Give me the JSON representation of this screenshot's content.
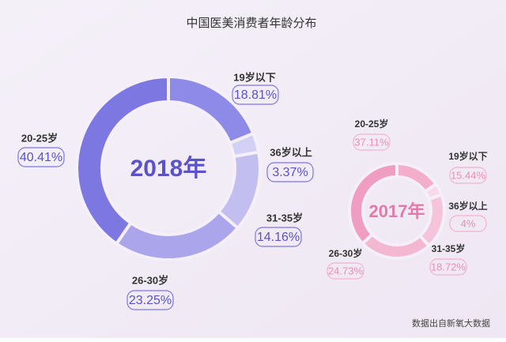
{
  "title": "中国医美消费者年龄分布",
  "source": "数据出自新氧大数据",
  "chart_data": [
    {
      "type": "pie",
      "center_label": "2018年",
      "categories": [
        "19岁以下",
        "36岁以上",
        "31-35岁",
        "26-30岁",
        "20-25岁"
      ],
      "values": [
        18.81,
        3.37,
        14.16,
        23.25,
        40.41
      ],
      "value_labels": [
        "18.81%",
        "3.37%",
        "14.16%",
        "23.25%",
        "40.41%"
      ],
      "colors": [
        "#8e8ae8",
        "#d3d0f5",
        "#c2beef",
        "#aba5ec",
        "#7d77e2"
      ]
    },
    {
      "type": "pie",
      "center_label": "2017年",
      "categories": [
        "19岁以下",
        "36岁以上",
        "31-35岁",
        "26-30岁",
        "20-25岁"
      ],
      "values": [
        15.44,
        4,
        18.72,
        24.73,
        37.11
      ],
      "value_labels": [
        "15.44%",
        "4%",
        "18.72%",
        "24.73%",
        "37.11%"
      ],
      "colors": [
        "#f3aecb",
        "#f9d9e7",
        "#f6c4da",
        "#f4b7d1",
        "#ef9dc1"
      ]
    }
  ]
}
